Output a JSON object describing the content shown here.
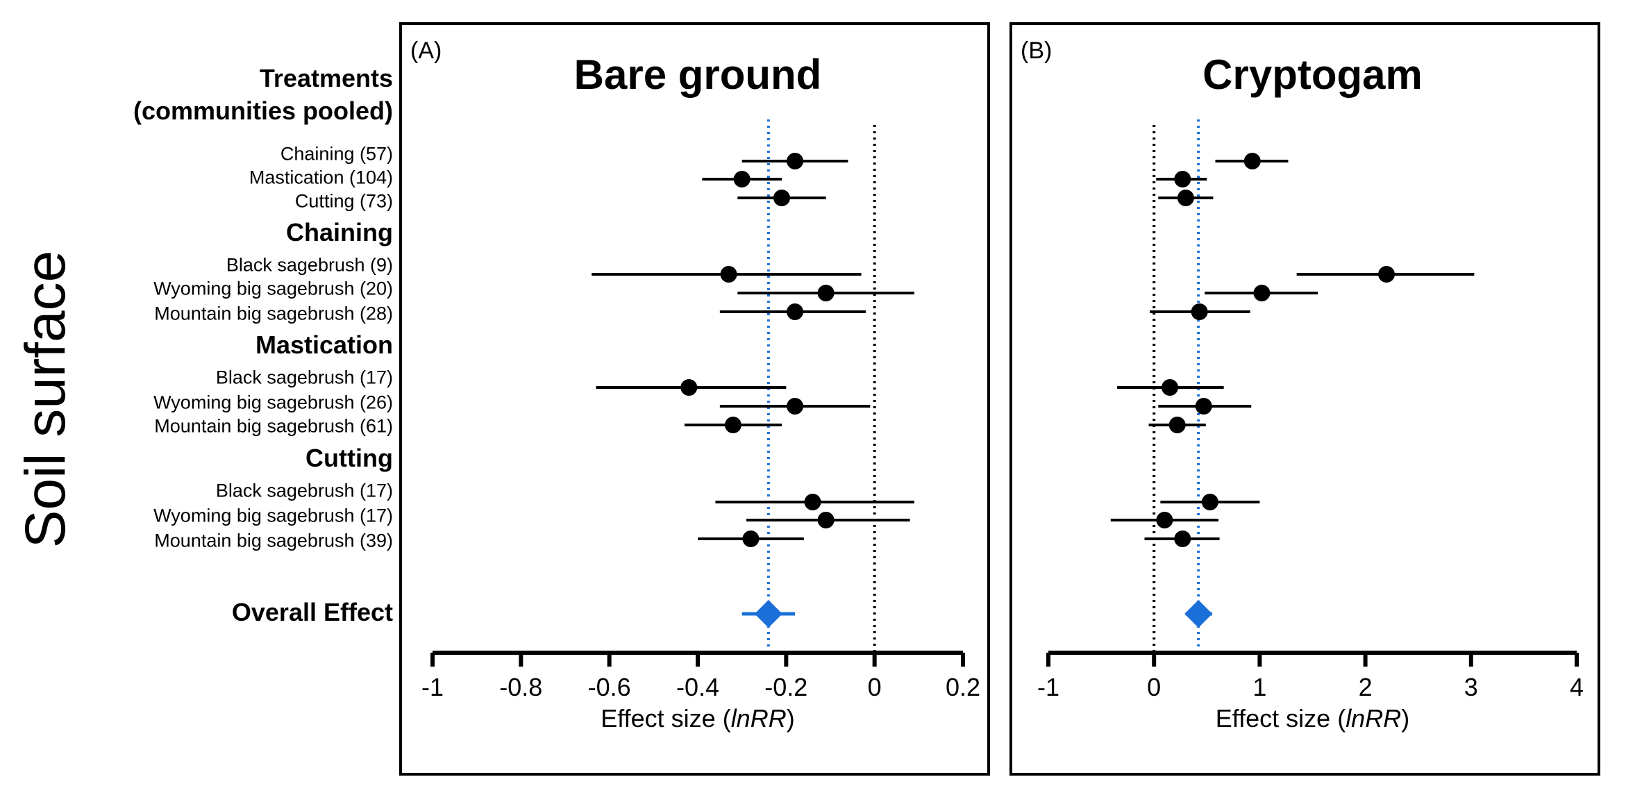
{
  "figure": {
    "side_label": "Soil surface",
    "labels": [
      {
        "text": "Treatments",
        "style": "group"
      },
      {
        "text": "(communities pooled)",
        "style": "group"
      },
      {
        "text": "Chaining (57)",
        "style": "row"
      },
      {
        "text": "Mastication (104)",
        "style": "row"
      },
      {
        "text": "Cutting (73)",
        "style": "row"
      },
      {
        "text": "Chaining",
        "style": "group"
      },
      {
        "text": "Black sagebrush (9)",
        "style": "row"
      },
      {
        "text": "Wyoming big sagebrush (20)",
        "style": "row"
      },
      {
        "text": "Mountain big sagebrush (28)",
        "style": "row"
      },
      {
        "text": "Mastication",
        "style": "group"
      },
      {
        "text": "Black sagebrush (17)",
        "style": "row"
      },
      {
        "text": "Wyoming big sagebrush (26)",
        "style": "row"
      },
      {
        "text": "Mountain big sagebrush (61)",
        "style": "row"
      },
      {
        "text": "Cutting",
        "style": "group"
      },
      {
        "text": "Black sagebrush (17)",
        "style": "row"
      },
      {
        "text": "Wyoming big sagebrush (17)",
        "style": "row"
      },
      {
        "text": "Mountain big sagebrush (39)",
        "style": "row"
      },
      {
        "text": "Overall Effect",
        "style": "group"
      }
    ]
  },
  "colors": {
    "overall": "#1a6fd8",
    "points": "#000000",
    "zero_line": "#000000"
  },
  "chart_data": [
    {
      "type": "forest",
      "panel_tag": "(A)",
      "title": "Bare ground",
      "xlabel_prefix": "Effect size (",
      "xlabel_italic": "lnRR",
      "xlabel_suffix": ")",
      "xlim": [
        -1,
        0.2
      ],
      "ticks": [
        -1,
        -0.8,
        -0.6,
        -0.4,
        -0.2,
        0,
        0.2
      ],
      "tick_labels": [
        "-1",
        "-0.8",
        "-0.6",
        "-0.4",
        "-0.2",
        "0",
        "0.2"
      ],
      "reference_line": 0,
      "overall": {
        "estimate": -0.24,
        "ci": [
          -0.3,
          -0.18
        ]
      },
      "rows": [
        {
          "label": "Chaining (57)",
          "estimate": -0.18,
          "ci": [
            -0.3,
            -0.06
          ]
        },
        {
          "label": "Mastication (104)",
          "estimate": -0.3,
          "ci": [
            -0.39,
            -0.21
          ]
        },
        {
          "label": "Cutting (73)",
          "estimate": -0.21,
          "ci": [
            -0.31,
            -0.11
          ]
        },
        {
          "label": "Black sagebrush (9)",
          "estimate": -0.33,
          "ci": [
            -0.64,
            -0.03
          ]
        },
        {
          "label": "Wyoming big sagebrush (20)",
          "estimate": -0.11,
          "ci": [
            -0.31,
            0.09
          ]
        },
        {
          "label": "Mountain big sagebrush (28)",
          "estimate": -0.18,
          "ci": [
            -0.35,
            -0.02
          ]
        },
        {
          "label": "Black sagebrush (17)",
          "estimate": -0.42,
          "ci": [
            -0.63,
            -0.2
          ]
        },
        {
          "label": "Wyoming big sagebrush (26)",
          "estimate": -0.18,
          "ci": [
            -0.35,
            -0.01
          ]
        },
        {
          "label": "Mountain big sagebrush (61)",
          "estimate": -0.32,
          "ci": [
            -0.43,
            -0.21
          ]
        },
        {
          "label": "Black sagebrush (17)",
          "estimate": -0.14,
          "ci": [
            -0.36,
            0.09
          ]
        },
        {
          "label": "Wyoming big sagebrush (17)",
          "estimate": -0.11,
          "ci": [
            -0.29,
            0.08
          ]
        },
        {
          "label": "Mountain big sagebrush (39)",
          "estimate": -0.28,
          "ci": [
            -0.4,
            -0.16
          ]
        }
      ]
    },
    {
      "type": "forest",
      "panel_tag": "(B)",
      "title": "Cryptogam",
      "xlabel_prefix": "Effect size (",
      "xlabel_italic": "lnRR",
      "xlabel_suffix": ")",
      "xlim": [
        -1,
        4
      ],
      "ticks": [
        -1,
        0,
        1,
        2,
        3,
        4
      ],
      "tick_labels": [
        "-1",
        "0",
        "1",
        "2",
        "3",
        "4"
      ],
      "reference_line": 0,
      "overall": {
        "estimate": 0.42,
        "ci": [
          0.3,
          0.55
        ]
      },
      "rows": [
        {
          "label": "Chaining (57)",
          "estimate": 0.93,
          "ci": [
            0.58,
            1.27
          ]
        },
        {
          "label": "Mastication (104)",
          "estimate": 0.27,
          "ci": [
            0.02,
            0.5
          ]
        },
        {
          "label": "Cutting (73)",
          "estimate": 0.3,
          "ci": [
            0.04,
            0.56
          ]
        },
        {
          "label": "Black sagebrush (9)",
          "estimate": 2.2,
          "ci": [
            1.35,
            3.03
          ]
        },
        {
          "label": "Wyoming big sagebrush (20)",
          "estimate": 1.02,
          "ci": [
            0.48,
            1.55
          ]
        },
        {
          "label": "Mountain big sagebrush (28)",
          "estimate": 0.43,
          "ci": [
            -0.04,
            0.91
          ]
        },
        {
          "label": "Black sagebrush (17)",
          "estimate": 0.15,
          "ci": [
            -0.35,
            0.66
          ]
        },
        {
          "label": "Wyoming big sagebrush (26)",
          "estimate": 0.47,
          "ci": [
            0.04,
            0.92
          ]
        },
        {
          "label": "Mountain big sagebrush (61)",
          "estimate": 0.22,
          "ci": [
            -0.05,
            0.49
          ]
        },
        {
          "label": "Black sagebrush (17)",
          "estimate": 0.53,
          "ci": [
            0.06,
            1.0
          ]
        },
        {
          "label": "Wyoming big sagebrush (17)",
          "estimate": 0.1,
          "ci": [
            -0.41,
            0.61
          ]
        },
        {
          "label": "Mountain big sagebrush (39)",
          "estimate": 0.27,
          "ci": [
            -0.09,
            0.62
          ]
        }
      ]
    }
  ]
}
